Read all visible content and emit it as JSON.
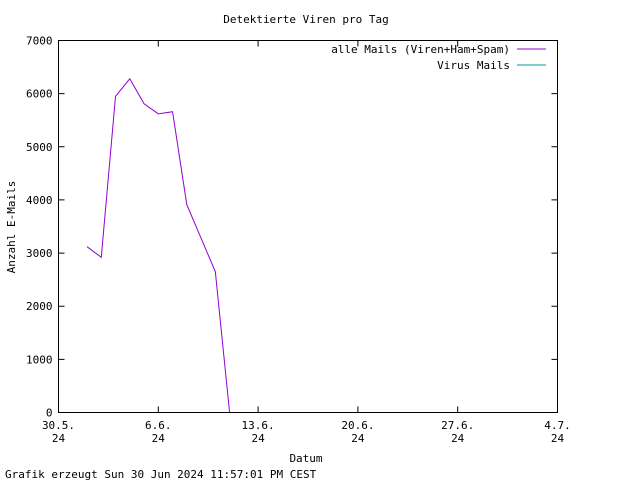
{
  "chart_data": {
    "type": "line",
    "title": "Detektierte Viren pro Tag",
    "x_label": "Datum",
    "y_label": "Anzahl E-Mails",
    "footer": "Grafik erzeugt Sun 30 Jun 2024 11:57:01 PM CEST",
    "x": [
      "2024-06-01",
      "2024-06-02",
      "2024-06-03",
      "2024-06-04",
      "2024-06-05",
      "2024-06-06",
      "2024-06-07",
      "2024-06-08",
      "2024-06-09",
      "2024-06-10",
      "2024-06-11"
    ],
    "series": [
      {
        "name": "alle Mails (Viren+Ham+Spam)",
        "color": "#9400d3",
        "values": [
          3120,
          2920,
          5950,
          6280,
          5810,
          5620,
          5660,
          3910,
          3280,
          2650,
          0
        ]
      },
      {
        "name": "Virus Mails",
        "color": "#009e9e",
        "values": [
          null,
          null,
          null,
          null,
          null,
          null,
          null,
          null,
          null,
          null,
          null
        ]
      }
    ],
    "xlim": [
      "2024-05-30",
      "2024-07-04"
    ],
    "xticks": [
      {
        "value": "2024-05-30",
        "label": "30.5.\n24"
      },
      {
        "value": "2024-06-06",
        "label": "6.6.\n24"
      },
      {
        "value": "2024-06-13",
        "label": "13.6.\n24"
      },
      {
        "value": "2024-06-20",
        "label": "20.6.\n24"
      },
      {
        "value": "2024-06-27",
        "label": "27.6.\n24"
      },
      {
        "value": "2024-07-04",
        "label": "4.7.\n24"
      }
    ],
    "ylim": [
      0,
      7000
    ],
    "yticks": [
      0,
      1000,
      2000,
      3000,
      4000,
      5000,
      6000,
      7000
    ],
    "legend": "top-right"
  }
}
